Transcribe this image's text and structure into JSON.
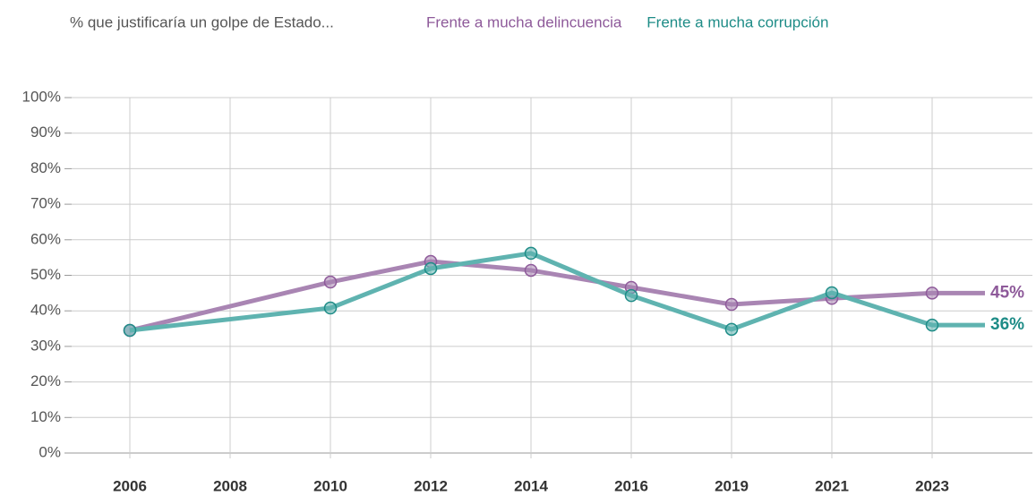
{
  "chart_data": {
    "type": "line",
    "title": "% que justificaría un golpe de Estado...",
    "categories": [
      "2006",
      "2008",
      "2010",
      "2012",
      "2014",
      "2016",
      "2019",
      "2021",
      "2023"
    ],
    "connect_gaps": true,
    "series": [
      {
        "name": "Frente a mucha delincuencia",
        "color": "#a985b3",
        "label_color": "#8e5a9a",
        "values": [
          34.5,
          null,
          48.1,
          53.9,
          51.4,
          46.6,
          41.8,
          43.5,
          45
        ],
        "value_labels": [
          null,
          null,
          null,
          null,
          null,
          null,
          null,
          null,
          "45%"
        ]
      },
      {
        "name": "Frente a mucha corrupción",
        "color": "#5fb3b0",
        "label_color": "#1e8c87",
        "values": [
          34.5,
          null,
          40.8,
          51.9,
          56.2,
          44.3,
          34.8,
          45.1,
          36
        ],
        "value_labels": [
          null,
          null,
          null,
          null,
          null,
          null,
          null,
          null,
          "36%"
        ]
      }
    ],
    "ylim": [
      0,
      100
    ],
    "yticks": [
      {
        "value": 0,
        "label": "0%"
      },
      {
        "value": 10,
        "label": "10%"
      },
      {
        "value": 20,
        "label": "20%"
      },
      {
        "value": 30,
        "label": "30%"
      },
      {
        "value": 40,
        "label": "40%"
      },
      {
        "value": 50,
        "label": "50%"
      },
      {
        "value": 60,
        "label": "60%"
      },
      {
        "value": 70,
        "label": "70%"
      },
      {
        "value": 80,
        "label": "80%"
      },
      {
        "value": 90,
        "label": "90%"
      },
      {
        "value": 100,
        "label": "100%"
      }
    ],
    "grid": true
  }
}
